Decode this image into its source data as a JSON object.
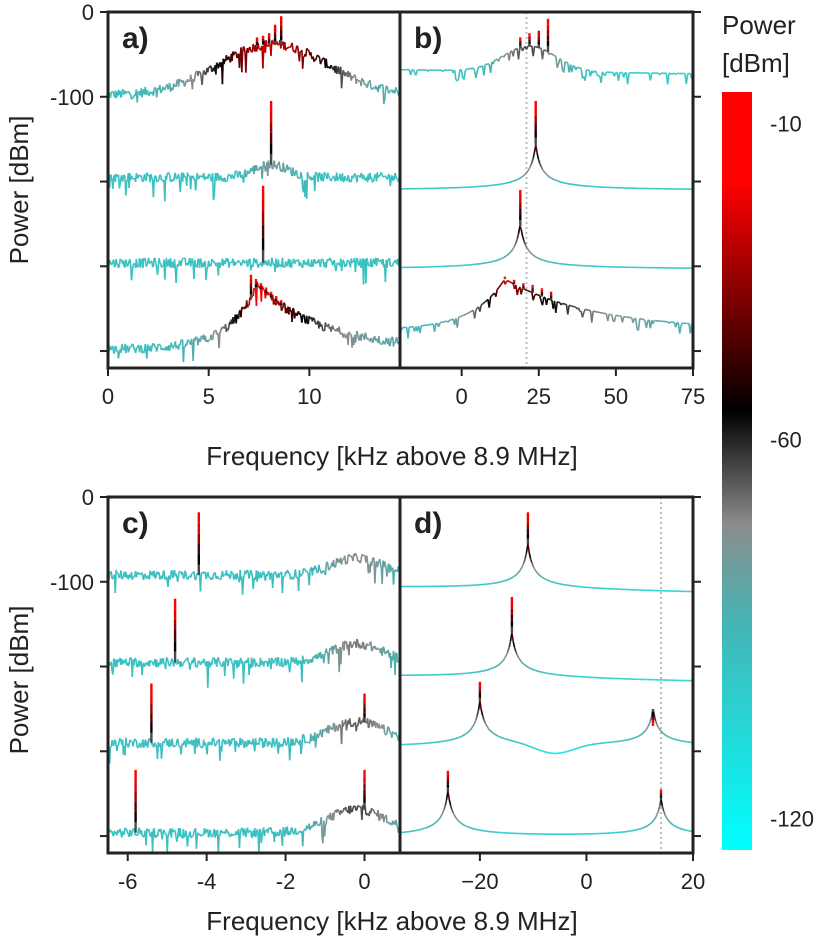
{
  "chart_data": {
    "type": "line",
    "description_note": "Four-panel spectra figure with shared colorbar",
    "colorbar": {
      "title_line1": "Power",
      "title_line2": "[dBm]",
      "ticks": [
        "-10",
        "-60",
        "-120"
      ],
      "tick_values": [
        -10,
        -60,
        -120
      ],
      "range": [
        -125,
        -5
      ],
      "colors": {
        "high": "#ff0000",
        "mid": "#000000",
        "gray": "#8c8c8c",
        "teal": "#46b4b4",
        "low": "#00ffff"
      }
    },
    "xlabel": "Frequency [kHz above 8.9 MHz]",
    "ylabel": "Power [dBm]",
    "ylim": [
      -420,
      0
    ],
    "offset_per_trace": -100,
    "panels": [
      {
        "id": "a",
        "label": "a)",
        "style": "noisy",
        "xlim": [
          0,
          14.5
        ],
        "xticks": [
          "0",
          "5",
          "10"
        ],
        "xtick_values": [
          0,
          5,
          10
        ],
        "yticks": [
          "0",
          "-100",
          "",
          "",
          ""
        ],
        "ytick_values": [
          0,
          -100,
          -200,
          -300,
          -400
        ],
        "traces": [
          {
            "baseline": -98,
            "shape": "hump",
            "center": 8.2,
            "width": 3.8,
            "height": 60,
            "peaks": [
              {
                "x": 8.6,
                "level": -5
              },
              {
                "x": 8.3,
                "level": -15
              },
              {
                "x": 8.0,
                "level": -25
              },
              {
                "x": 7.7,
                "level": -28
              },
              {
                "x": 7.4,
                "level": -30
              }
            ]
          },
          {
            "baseline": -195,
            "shape": "hump",
            "center": 8.1,
            "width": 1.2,
            "height": 15,
            "peaks": [
              {
                "x": 8.1,
                "level": -105
              }
            ]
          },
          {
            "baseline": -296,
            "shape": "flat",
            "peaks": [
              {
                "x": 7.7,
                "level": -205
              }
            ]
          },
          {
            "baseline": -398,
            "shape": "asym",
            "center": 7.4,
            "wleft": 2.0,
            "wright": 4.5,
            "height": 75,
            "peaks": [
              {
                "x": 7.1,
                "level": -310
              },
              {
                "x": 7.35,
                "level": -315
              },
              {
                "x": 7.6,
                "level": -320
              },
              {
                "x": 7.85,
                "level": -325
              },
              {
                "x": 8.1,
                "level": -330
              },
              {
                "x": 8.35,
                "level": -335
              },
              {
                "x": 8.6,
                "level": -340
              }
            ]
          }
        ]
      },
      {
        "id": "b",
        "label": "b)",
        "style": "smooth",
        "xlim": [
          -20,
          75
        ],
        "xticks": [
          "0",
          "25",
          "50",
          "75"
        ],
        "xtick_values": [
          0,
          25,
          50,
          75
        ],
        "yticks": [
          "",
          "",
          "",
          "",
          ""
        ],
        "ytick_values": [
          0,
          -100,
          -200,
          -300,
          -400
        ],
        "dotted_line_x": 21,
        "traces": [
          {
            "baseline": -68,
            "shape": "hump",
            "center": 22,
            "width": 12,
            "height": 30,
            "slope": -0.05,
            "peaks": [
              {
                "x": 28,
                "level": -8
              },
              {
                "x": 25,
                "level": -22
              },
              {
                "x": 22,
                "level": -25
              },
              {
                "x": 19,
                "level": -30
              }
            ]
          },
          {
            "baseline": -205,
            "shape": "lorentz",
            "center": 24,
            "slope": 0,
            "peaks": [
              {
                "x": 24,
                "level": -105
              }
            ]
          },
          {
            "baseline": -298,
            "shape": "lorentz",
            "center": 19,
            "slope": 0,
            "peaks": [
              {
                "x": 19,
                "level": -210
              }
            ]
          },
          {
            "baseline": -375,
            "shape": "asym",
            "center": 14,
            "wleft": 15,
            "wright": 40,
            "height": 60,
            "peaks": [
              {
                "x": 14,
                "level": -312
              },
              {
                "x": 17,
                "level": -316
              },
              {
                "x": 20,
                "level": -320
              },
              {
                "x": 23,
                "level": -322
              },
              {
                "x": 26,
                "level": -326
              },
              {
                "x": 29,
                "level": -330
              }
            ]
          }
        ]
      },
      {
        "id": "c",
        "label": "c)",
        "style": "noisy",
        "xlim": [
          -6.5,
          0.9
        ],
        "xticks": [
          "-6",
          "-4",
          "-2",
          "0"
        ],
        "xtick_values": [
          -6,
          -4,
          -2,
          0
        ],
        "yticks": [
          "0",
          "-100",
          "",
          "",
          ""
        ],
        "ytick_values": [
          0,
          -100,
          -200,
          -300,
          -400
        ],
        "traces": [
          {
            "baseline": -92,
            "shape": "hump",
            "center": -0.2,
            "width": 0.9,
            "height": 20,
            "peaks": [
              {
                "x": -4.2,
                "level": -18
              }
            ]
          },
          {
            "baseline": -195,
            "shape": "hump",
            "center": -0.2,
            "width": 0.9,
            "height": 22,
            "peaks": [
              {
                "x": -4.8,
                "level": -120
              }
            ]
          },
          {
            "baseline": -290,
            "shape": "hump",
            "center": -0.2,
            "width": 1.0,
            "height": 25,
            "peaks": [
              {
                "x": -5.4,
                "level": -220
              },
              {
                "x": 0.0,
                "level": -232
              }
            ]
          },
          {
            "baseline": -396,
            "shape": "hump",
            "center": -0.2,
            "width": 1.0,
            "height": 28,
            "peaks": [
              {
                "x": -5.8,
                "level": -322
              },
              {
                "x": 0.0,
                "level": -322
              }
            ]
          }
        ]
      },
      {
        "id": "d",
        "label": "d)",
        "style": "smooth",
        "xlim": [
          -35,
          20
        ],
        "xticks": [
          "−20",
          "0",
          "20"
        ],
        "xtick_values": [
          -20,
          0,
          20
        ],
        "yticks": [
          "",
          "",
          "",
          "",
          ""
        ],
        "ytick_values": [
          0,
          -100,
          -200,
          -300,
          -400
        ],
        "dotted_line_x": 14,
        "traces": [
          {
            "baseline": -102,
            "shape": "lorentz",
            "center": -11,
            "slope": -0.1,
            "peaks": [
              {
                "x": -11,
                "level": -18
              }
            ]
          },
          {
            "baseline": -207,
            "shape": "lorentz",
            "center": -14,
            "slope": -0.1,
            "peaks": [
              {
                "x": -14,
                "level": -118
              }
            ]
          },
          {
            "baseline": -287,
            "shape": "lorentz2",
            "center": -20,
            "center2": 12.5,
            "dip": -6,
            "slope": 0,
            "peaks": [
              {
                "x": -20,
                "level": -218
              },
              {
                "x": 12.5,
                "level": -270
              }
            ]
          },
          {
            "baseline": -393,
            "shape": "lorentz2",
            "center": -26,
            "center2": 14,
            "slope": 0,
            "peaks": [
              {
                "x": -26,
                "level": -323
              },
              {
                "x": 14,
                "level": -345
              }
            ]
          }
        ]
      }
    ]
  }
}
